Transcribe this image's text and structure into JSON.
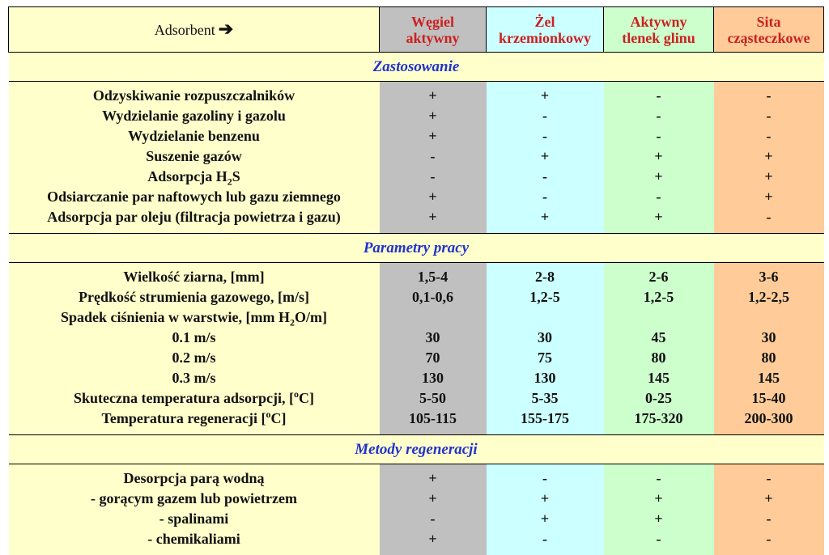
{
  "header": {
    "adsorbent_label": "Adsorbent",
    "arrow": "➔",
    "columns": [
      {
        "line1": "Węgiel",
        "line2": "aktywny"
      },
      {
        "line1": "Żel",
        "line2": "krzemionkowy"
      },
      {
        "line1": "Aktywny",
        "line2": "tlenek glinu"
      },
      {
        "line1": "Sita",
        "line2": "cząsteczkowe"
      }
    ]
  },
  "colors": {
    "label_col": "#ffffcc",
    "col1": "#c0c0c0",
    "col2": "#ccffff",
    "col3": "#ccffcc",
    "col4": "#ffcc99",
    "section_text": "#2233cc",
    "header_text": "#cc2020"
  },
  "sections": [
    {
      "title": "Zastosowanie",
      "rows": [
        {
          "label": "Odzyskiwanie rozpuszczalników",
          "values": [
            "+",
            "+",
            "-",
            "-"
          ]
        },
        {
          "label": "Wydzielanie gazoliny i gazolu",
          "values": [
            "+",
            "-",
            "-",
            "-"
          ]
        },
        {
          "label": "Wydzielanie benzenu",
          "values": [
            "+",
            "-",
            "-",
            "-"
          ]
        },
        {
          "label": "Suszenie gazów",
          "values": [
            "-",
            "+",
            "+",
            "+"
          ]
        },
        {
          "label_pre": "Adsorpcja H",
          "label_sub": "2",
          "label_post": "S",
          "values": [
            "-",
            "-",
            "+",
            "+"
          ]
        },
        {
          "label": "Odsiarczanie par naftowych lub gazu ziemnego",
          "values": [
            "+",
            "-",
            "-",
            "+"
          ]
        },
        {
          "label": "Adsorpcja par oleju (filtracja powietrza i gazu)",
          "values": [
            "+",
            "+",
            "+",
            "-"
          ]
        }
      ]
    },
    {
      "title": "Parametry pracy",
      "rows": [
        {
          "label": "Wielkość ziarna, [mm]",
          "values": [
            "1,5-4",
            "2-8",
            "2-6",
            "3-6"
          ]
        },
        {
          "label": "Prędkość strumienia gazowego, [m/s]",
          "values": [
            "0,1-0,6",
            "1,2-5",
            "1,2-5",
            "1,2-2,5"
          ]
        },
        {
          "label_pre": "Spadek ciśnienia w warstwie, [mm H",
          "label_sub": "2",
          "label_post": "O/m]",
          "values": [
            "",
            "",
            "",
            ""
          ]
        },
        {
          "label": "0.1 m/s",
          "values": [
            "30",
            "30",
            "45",
            "30"
          ]
        },
        {
          "label": "0.2 m/s",
          "values": [
            "70",
            "75",
            "80",
            "80"
          ]
        },
        {
          "label": "0.3 m/s",
          "values": [
            "130",
            "130",
            "145",
            "145"
          ]
        },
        {
          "label_pre": "Skuteczna temperatura adsorpcji, [",
          "label_sup": "o",
          "label_post": "C]",
          "values": [
            "5-50",
            "5-35",
            "0-25",
            "15-40"
          ]
        },
        {
          "label_pre": "Temperatura regeneracji [",
          "label_sup": "o",
          "label_post": "C]",
          "values": [
            "105-115",
            "155-175",
            "175-320",
            "200-300"
          ]
        }
      ]
    },
    {
      "title": "Metody regeneracji",
      "rows": [
        {
          "label": "Desorpcja parą wodną",
          "values": [
            "+",
            "-",
            "-",
            "-"
          ]
        },
        {
          "label": "- gorącym gazem lub powietrzem",
          "values": [
            "+",
            "+",
            "+",
            "+"
          ]
        },
        {
          "label": "- spalinami",
          "values": [
            "-",
            "+",
            "+",
            "-"
          ]
        },
        {
          "label": "- chemikaliami",
          "values": [
            "+",
            "-",
            "-",
            "-"
          ]
        }
      ]
    }
  ]
}
